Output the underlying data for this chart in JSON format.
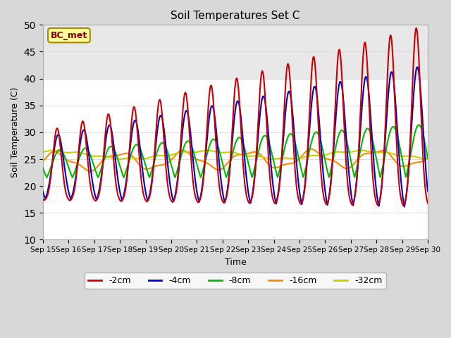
{
  "title": "Soil Temperatures Set C",
  "xlabel": "Time",
  "ylabel": "Soil Temperature (C)",
  "ylim": [
    10,
    50
  ],
  "xlim": [
    0,
    15
  ],
  "x_tick_labels": [
    "Sep 15",
    "Sep 16",
    "Sep 17",
    "Sep 18",
    "Sep 19",
    "Sep 20",
    "Sep 21",
    "Sep 22",
    "Sep 23",
    "Sep 24",
    "Sep 25",
    "Sep 26",
    "Sep 27",
    "Sep 28",
    "Sep 29",
    "Sep 30"
  ],
  "series": {
    "-2cm": {
      "color": "#cc0000",
      "lw": 1.5
    },
    "-4cm": {
      "color": "#0000cc",
      "lw": 1.5
    },
    "-8cm": {
      "color": "#00bb00",
      "lw": 1.5
    },
    "-16cm": {
      "color": "#ff8800",
      "lw": 1.5
    },
    "-32cm": {
      "color": "#cccc00",
      "lw": 1.5
    }
  },
  "legend_label": "BC_met",
  "legend_color": "#880000",
  "legend_bg": "#ffff99",
  "legend_border": "#aa8800",
  "plot_bg": "#ffffff",
  "fig_bg": "#d8d8d8",
  "grid_color": "#dddddd",
  "yticks": [
    10,
    15,
    20,
    25,
    30,
    35,
    40,
    45,
    50
  ]
}
